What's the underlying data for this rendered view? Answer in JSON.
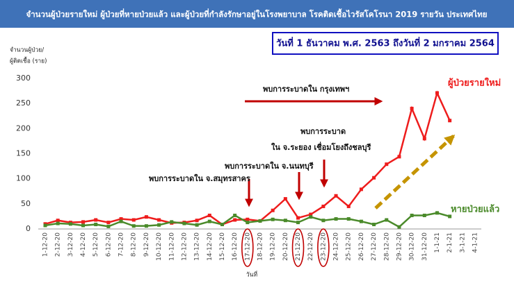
{
  "chart_data": {
    "type": "line",
    "title": "จำนวนผู้ป่วยรายใหม่ ผู้ป่วยที่หายป่วยแล้ว และผู้ป่วยที่กำลังรักษาอยู่ในโรงพยาบาล โรคติดเชื้อไวรัสโคโรนา 2019 รายวัน ประเทศไทย",
    "subtitle": "วันที่ 1 ธันวาคม พ.ศ. 2563 ถึงวันที่ 2 มกราคม 2564",
    "y_label": [
      "จำนวนผู้ป่วย/",
      "ผู้ติดเชื้อ (ราย)"
    ],
    "x_label": "วันที่",
    "categories": [
      "1-12-20",
      "2-12-20",
      "3-12-20",
      "4-12-20",
      "5-12-20",
      "6-12-20",
      "7-12-20",
      "8-12-20",
      "9-12-20",
      "10-12-20",
      "11-12-20",
      "12-12-20",
      "13-12-20",
      "14-12-20",
      "15-12-20",
      "16-12-20",
      "17-12-20",
      "18-12-20",
      "19-12-20",
      "20-12-20",
      "21-12-20",
      "22-12-20",
      "23-12-20",
      "24-12-20",
      "25-12-20",
      "26-12-20",
      "27-12-20",
      "28-12-20",
      "29-12-20",
      "30-12-20",
      "31-12-20",
      "1-1-21",
      "2-1-21",
      "3-1-21",
      "4-1-21"
    ],
    "series": [
      {
        "name": "ผู้ป่วยรายใหม่",
        "color": "#ee1c1c",
        "values": [
          10,
          17,
          13,
          14,
          18,
          13,
          20,
          18,
          24,
          18,
          12,
          13,
          17,
          27,
          9,
          18,
          19,
          16,
          37,
          60,
          22,
          29,
          45,
          66,
          45,
          79,
          102,
          129,
          144,
          240,
          180,
          271,
          216,
          null,
          null
        ]
      },
      {
        "name": "หายป่วยแล้ว",
        "color": "#4a8a2a",
        "values": [
          7,
          11,
          10,
          7,
          9,
          5,
          15,
          6,
          6,
          8,
          14,
          11,
          8,
          15,
          9,
          27,
          13,
          16,
          19,
          17,
          13,
          24,
          17,
          20,
          20,
          15,
          9,
          18,
          4,
          27,
          27,
          32,
          25,
          null,
          null
        ]
      }
    ],
    "ylim": [
      0,
      300
    ],
    "yticks": [
      0,
      50,
      100,
      150,
      200,
      250,
      300
    ],
    "grid": false,
    "annotations": [
      "พบการระบาดใน กรุงเทพฯ",
      "พบการระบาด",
      "ใน จ.ระยอง เชื่อมโยงถึงชลบุรี",
      "พบการระบาดใน จ.นนทบุรี",
      "พบการระบาดใน จ.สมุทรสาคร"
    ]
  }
}
